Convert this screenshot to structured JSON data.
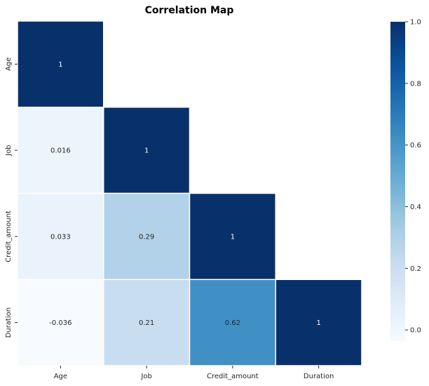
{
  "chart_data": {
    "type": "heatmap",
    "title": "Correlation Map",
    "rows": [
      "Age",
      "Job",
      "Credit_amount",
      "Duration"
    ],
    "columns": [
      "Age",
      "Job",
      "Credit_amount",
      "Duration"
    ],
    "mask": "upper-triangle",
    "values": [
      [
        1,
        null,
        null,
        null
      ],
      [
        0.016,
        1,
        null,
        null
      ],
      [
        0.033,
        0.29,
        1,
        null
      ],
      [
        -0.036,
        0.21,
        0.62,
        1
      ]
    ],
    "labels": [
      [
        "1",
        "",
        "",
        ""
      ],
      [
        "0.016",
        "1",
        "",
        ""
      ],
      [
        "0.033",
        "0.29",
        "1",
        ""
      ],
      [
        "-0.036",
        "0.21",
        "0.62",
        "1"
      ]
    ],
    "colormap": "Blues",
    "colorbar": {
      "min": -0.036,
      "max": 1.0,
      "ticks": [
        0.0,
        0.2,
        0.4,
        0.6,
        0.8,
        1.0
      ],
      "tick_labels": [
        "0.0",
        "0.2",
        "0.4",
        "0.6",
        "0.8",
        "1.0"
      ]
    },
    "grid_line_color": "#ffffff"
  }
}
